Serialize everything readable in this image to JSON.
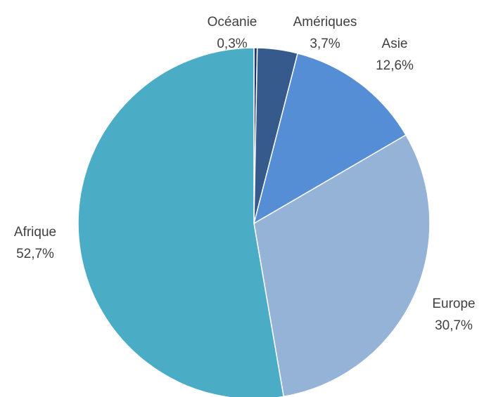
{
  "chart_data": {
    "type": "pie",
    "categories": [
      "Océanie",
      "Amériques",
      "Asie",
      "Europe",
      "Afrique"
    ],
    "values": [
      0.3,
      3.7,
      12.6,
      30.7,
      52.7
    ],
    "value_labels": [
      "0,3%",
      "3,7%",
      "12,6%",
      "30,7%",
      "52,7%"
    ],
    "colors": [
      "#1f3864",
      "#375a8c",
      "#558ed5",
      "#95b3d7",
      "#4bacc6"
    ]
  }
}
